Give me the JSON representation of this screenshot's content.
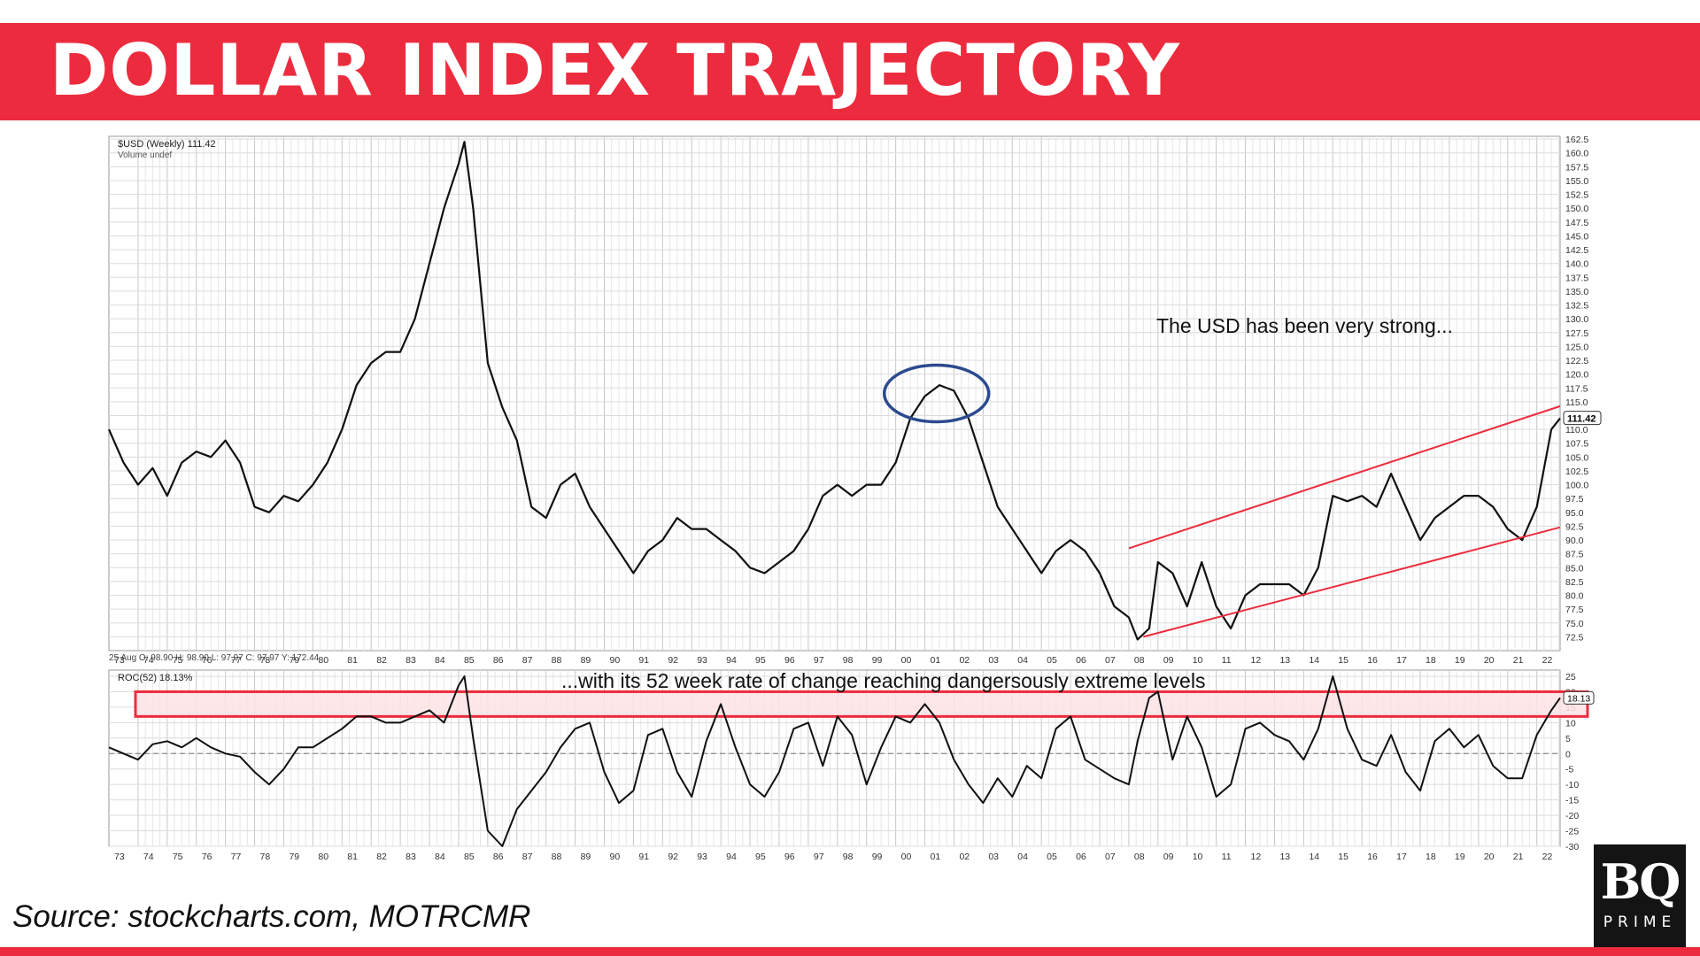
{
  "header": {
    "title": "DOLLAR INDEX TRAJECTORY"
  },
  "footer": {
    "source": "Source: stockcharts.com, MOTRCMR"
  },
  "logo": {
    "mark": "BQ",
    "sub": "PRIME"
  },
  "colors": {
    "brand_red": "#ec2c3e",
    "band_fill": "#fde3e5",
    "ellipse": "#2b4a8f",
    "line": "#111111",
    "grid": "#d0d0d0"
  },
  "chart_data": [
    {
      "type": "line",
      "title": "$USD (Weekly) 111.42",
      "subtitle": "Volume undef",
      "last_value_label": "111.42",
      "ylim": [
        70,
        163
      ],
      "y_ticks": [
        "72.5",
        "75.0",
        "77.5",
        "80.0",
        "82.5",
        "85.0",
        "87.5",
        "90.0",
        "92.5",
        "95.0",
        "97.5",
        "100.0",
        "102.5",
        "105.0",
        "107.5",
        "110.0",
        "112.5",
        "115.0",
        "117.5",
        "120.0",
        "122.5",
        "125.0",
        "127.5",
        "130.0",
        "132.5",
        "135.0",
        "137.5",
        "140.0",
        "142.5",
        "145.0",
        "147.5",
        "150.0",
        "152.5",
        "155.0",
        "157.5",
        "160.0",
        "162.5"
      ],
      "x_range": [
        1973.0,
        2022.8
      ],
      "x": [
        1973.0,
        1973.5,
        1974.0,
        1974.5,
        1975.0,
        1975.5,
        1976.0,
        1976.5,
        1977.0,
        1977.5,
        1978.0,
        1978.5,
        1979.0,
        1979.5,
        1980.0,
        1980.5,
        1981.0,
        1981.5,
        1982.0,
        1982.5,
        1983.0,
        1983.5,
        1984.0,
        1984.5,
        1985.0,
        1985.2,
        1985.5,
        1986.0,
        1986.5,
        1987.0,
        1987.5,
        1988.0,
        1988.5,
        1989.0,
        1989.5,
        1990.0,
        1990.5,
        1991.0,
        1991.5,
        1992.0,
        1992.5,
        1993.0,
        1993.5,
        1994.0,
        1994.5,
        1995.0,
        1995.5,
        1996.0,
        1996.5,
        1997.0,
        1997.5,
        1998.0,
        1998.5,
        1999.0,
        1999.5,
        2000.0,
        2000.5,
        2001.0,
        2001.5,
        2002.0,
        2002.5,
        2003.0,
        2003.5,
        2004.0,
        2004.5,
        2005.0,
        2005.5,
        2006.0,
        2006.5,
        2007.0,
        2007.5,
        2008.0,
        2008.3,
        2008.7,
        2009.0,
        2009.5,
        2010.0,
        2010.5,
        2011.0,
        2011.5,
        2012.0,
        2012.5,
        2013.0,
        2013.5,
        2014.0,
        2014.5,
        2015.0,
        2015.5,
        2016.0,
        2016.5,
        2017.0,
        2017.5,
        2018.0,
        2018.5,
        2019.0,
        2019.5,
        2020.0,
        2020.5,
        2021.0,
        2021.5,
        2022.0,
        2022.5,
        2022.8
      ],
      "y": [
        110,
        104,
        100,
        103,
        98,
        104,
        106,
        105,
        108,
        104,
        96,
        95,
        98,
        97,
        100,
        104,
        110,
        118,
        122,
        124,
        124,
        130,
        140,
        150,
        158,
        162,
        150,
        122,
        114,
        108,
        96,
        94,
        100,
        102,
        96,
        92,
        88,
        84,
        88,
        90,
        94,
        92,
        92,
        90,
        88,
        85,
        84,
        86,
        88,
        92,
        98,
        100,
        98,
        100,
        100,
        104,
        112,
        116,
        118,
        117,
        112,
        104,
        96,
        92,
        88,
        84,
        88,
        90,
        88,
        84,
        78,
        76,
        72,
        74,
        86,
        84,
        78,
        86,
        78,
        74,
        80,
        82,
        82,
        82,
        80,
        85,
        98,
        97,
        98,
        96,
        102,
        96,
        90,
        94,
        96,
        98,
        98,
        96,
        92,
        90,
        96,
        110,
        112
      ],
      "annotations": [
        {
          "text": "The USD has been very strong..."
        }
      ],
      "channel": {
        "upper": {
          "x": [
            2008.0,
            2022.8
          ],
          "y": [
            88.5,
            114.2
          ]
        },
        "lower": {
          "x": [
            2008.5,
            2022.8
          ],
          "y": [
            72.5,
            92.3
          ]
        }
      },
      "highlight_ellipse": {
        "x_center": 2001.4,
        "y_center": 116.5
      },
      "ohlc_label": "25 Aug O: 98.90  H: 98.90  L: 97.97  C: 97.97  Y: 172.44"
    },
    {
      "type": "line",
      "title": "ROC(52) 18.13%",
      "last_value_label": "18.13",
      "ylim": [
        -30,
        27
      ],
      "y_ticks": [
        "25",
        "20",
        "15",
        "10",
        "5",
        "0",
        "-5",
        "-10",
        "-15",
        "-20",
        "-25",
        "-30"
      ],
      "zero_line": true,
      "highlight_band": [
        12,
        20
      ],
      "annotation": "...with its 52 week rate of change reaching dangersously extreme levels",
      "x": [
        1973.0,
        1973.5,
        1974.0,
        1974.5,
        1975.0,
        1975.5,
        1976.0,
        1976.5,
        1977.0,
        1977.5,
        1978.0,
        1978.5,
        1979.0,
        1979.5,
        1980.0,
        1980.5,
        1981.0,
        1981.5,
        1982.0,
        1982.5,
        1983.0,
        1983.5,
        1984.0,
        1984.5,
        1985.0,
        1985.2,
        1985.5,
        1986.0,
        1986.5,
        1987.0,
        1987.5,
        1988.0,
        1988.5,
        1989.0,
        1989.5,
        1990.0,
        1990.5,
        1991.0,
        1991.5,
        1992.0,
        1992.5,
        1993.0,
        1993.5,
        1994.0,
        1994.5,
        1995.0,
        1995.5,
        1996.0,
        1996.5,
        1997.0,
        1997.5,
        1998.0,
        1998.5,
        1999.0,
        1999.5,
        2000.0,
        2000.5,
        2001.0,
        2001.5,
        2002.0,
        2002.5,
        2003.0,
        2003.5,
        2004.0,
        2004.5,
        2005.0,
        2005.5,
        2006.0,
        2006.5,
        2007.0,
        2007.5,
        2008.0,
        2008.3,
        2008.7,
        2009.0,
        2009.5,
        2010.0,
        2010.5,
        2011.0,
        2011.5,
        2012.0,
        2012.5,
        2013.0,
        2013.5,
        2014.0,
        2014.5,
        2015.0,
        2015.5,
        2016.0,
        2016.5,
        2017.0,
        2017.5,
        2018.0,
        2018.5,
        2019.0,
        2019.5,
        2020.0,
        2020.5,
        2021.0,
        2021.5,
        2022.0,
        2022.5,
        2022.8
      ],
      "y": [
        2,
        0,
        -2,
        3,
        4,
        2,
        5,
        2,
        0,
        -1,
        -6,
        -10,
        -5,
        2,
        2,
        5,
        8,
        12,
        12,
        10,
        10,
        12,
        14,
        10,
        22,
        25,
        5,
        -25,
        -30,
        -18,
        -12,
        -6,
        2,
        8,
        10,
        -6,
        -16,
        -12,
        6,
        8,
        -6,
        -14,
        4,
        16,
        2,
        -10,
        -14,
        -6,
        8,
        10,
        -4,
        12,
        6,
        -10,
        2,
        12,
        10,
        16,
        10,
        -2,
        -10,
        -16,
        -8,
        -14,
        -4,
        -8,
        8,
        12,
        -2,
        -5,
        -8,
        -10,
        4,
        18,
        20,
        -2,
        12,
        2,
        -14,
        -10,
        8,
        10,
        6,
        4,
        -2,
        8,
        25,
        8,
        -2,
        -4,
        6,
        -6,
        -12,
        4,
        8,
        2,
        6,
        -4,
        -8,
        -8,
        6,
        14,
        18
      ]
    }
  ]
}
